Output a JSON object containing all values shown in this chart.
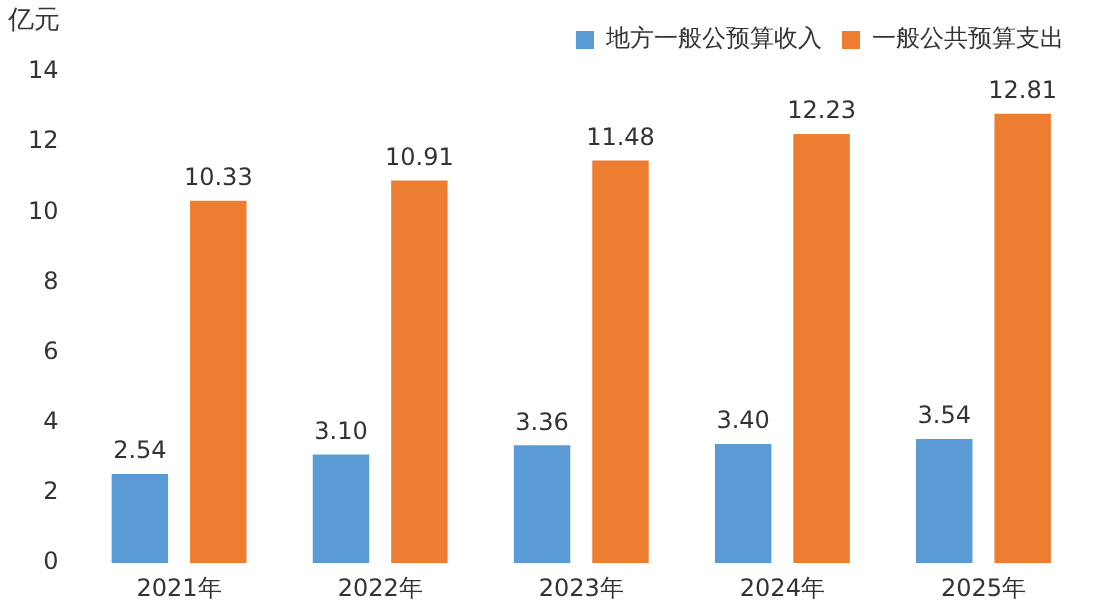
{
  "chart_data": {
    "type": "bar",
    "ylabel": "亿元",
    "categories": [
      "2021年",
      "2022年",
      "2023年",
      "2024年",
      "2025年"
    ],
    "series": [
      {
        "name": "地方一般公预算收入",
        "color": "#5b9bd5",
        "values": [
          2.54,
          3.1,
          3.36,
          3.4,
          3.54
        ],
        "value_labels": [
          "2.54",
          "3.10",
          "3.36",
          "3.40",
          "3.54"
        ]
      },
      {
        "name": "一般公共预算支出",
        "color": "#ed7d31",
        "values": [
          10.33,
          10.91,
          11.48,
          12.23,
          12.81
        ],
        "value_labels": [
          "10.33",
          "10.91",
          "11.48",
          "12.23",
          "12.81"
        ]
      }
    ],
    "ylim": [
      0,
      14
    ],
    "yticks": [
      0,
      2,
      4,
      6,
      8,
      10,
      12,
      14
    ],
    "grid": false,
    "legend": "top"
  }
}
